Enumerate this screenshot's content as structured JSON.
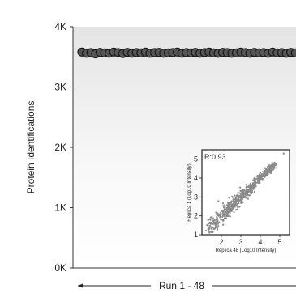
{
  "chart_data": [
    {
      "type": "scatter",
      "ylabel": "Protein Identifications",
      "xlabel": "Run 1 - 48",
      "ylim": [
        0,
        4000
      ],
      "yticks": [
        0,
        1000,
        2000,
        3000,
        4000
      ],
      "ytick_labels": [
        "0K",
        "1K",
        "2K",
        "3K",
        "4K"
      ],
      "x_range": [
        1,
        48
      ],
      "marker_color": "#555555",
      "series": [
        {
          "x": [
            1,
            2,
            3,
            4,
            5,
            6,
            7,
            8,
            9,
            10,
            11,
            12,
            13,
            14,
            15,
            16,
            17,
            18,
            19,
            20,
            21,
            22,
            23,
            24,
            25,
            26,
            27,
            28,
            29,
            30,
            31,
            32,
            33,
            34,
            35,
            36,
            37,
            38,
            39,
            40,
            41,
            42,
            43,
            44,
            45,
            46,
            47,
            48
          ],
          "y": [
            3580,
            3560,
            3570,
            3550,
            3575,
            3565,
            3560,
            3580,
            3570,
            3555,
            3575,
            3560,
            3570,
            3565,
            3580,
            3560,
            3570,
            3575,
            3560,
            3565,
            3570,
            3580,
            3560,
            3570,
            3565,
            3575,
            3560,
            3570,
            3580,
            3565,
            3560,
            3575,
            3570,
            3560,
            3565,
            3580,
            3570,
            3560,
            3575,
            3565,
            3570,
            3560,
            3580,
            3565,
            3570,
            3560,
            3575,
            3565
          ]
        }
      ]
    },
    {
      "type": "scatter",
      "annotation": "R:0.93",
      "xlabel": "Replica 48 (Log10 Intensity)",
      "ylabel": "Replica 1 (Log10 Intensity)",
      "xlim": [
        1,
        5.5
      ],
      "ylim": [
        1,
        5.5
      ],
      "xticks": [
        2,
        3,
        4,
        5
      ],
      "yticks": [
        1,
        2,
        3,
        4,
        5
      ],
      "marker_color": "#8a8a8a"
    }
  ]
}
